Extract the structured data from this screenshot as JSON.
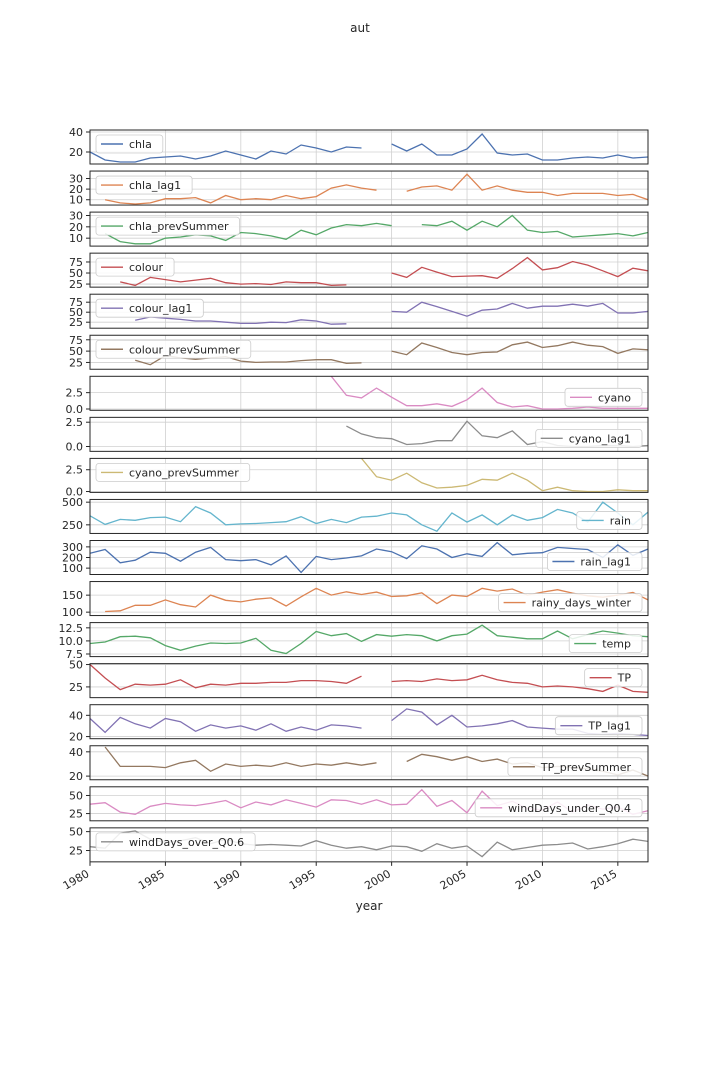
{
  "chart_data": {
    "type": "line",
    "title": "aut",
    "xlabel": "year",
    "xlim": [
      1980,
      2017
    ],
    "xticks": [
      1980,
      1985,
      1990,
      1995,
      2000,
      2005,
      2010,
      2015
    ],
    "xtick_labels": [
      "1980",
      "1985",
      "1990",
      "1995",
      "2000",
      "2005",
      "2010",
      "2015"
    ],
    "x_start": 1980,
    "grid": true,
    "subplots": [
      {
        "name": "chla",
        "color": "#4c72b0",
        "legend_loc": "upper-left",
        "ylim": [
          8,
          42
        ],
        "yticks": [
          20,
          40
        ],
        "ytick_labels": [
          "20",
          "40"
        ],
        "values": [
          20,
          12,
          10,
          10,
          14,
          15,
          16,
          13,
          16,
          21,
          17,
          13,
          21,
          18,
          27,
          24,
          20,
          25,
          24,
          null,
          28,
          21,
          28,
          17,
          17,
          23,
          38,
          19,
          17,
          18,
          12,
          12,
          14,
          15,
          14,
          17,
          14,
          15
        ]
      },
      {
        "name": "chla_lag1",
        "color": "#dd8452",
        "legend_loc": "upper-left",
        "ylim": [
          5,
          37
        ],
        "yticks": [
          10,
          20,
          30
        ],
        "ytick_labels": [
          "10",
          "20",
          "30"
        ],
        "values": [
          null,
          10,
          7,
          6,
          7,
          11,
          11,
          12,
          7,
          14,
          10,
          11,
          10,
          14,
          11,
          13,
          21,
          24,
          21,
          19,
          null,
          18,
          22,
          23,
          19,
          34,
          19,
          23,
          19,
          17,
          17,
          14,
          16,
          16,
          16,
          14,
          15,
          10
        ]
      },
      {
        "name": "chla_prevSummer",
        "color": "#55a868",
        "legend_loc": "upper-left",
        "ylim": [
          3,
          33
        ],
        "yticks": [
          10,
          20,
          30
        ],
        "ytick_labels": [
          "10",
          "20",
          "30"
        ],
        "values": [
          null,
          14,
          7,
          5,
          5,
          10,
          11,
          13,
          12,
          8,
          15,
          14,
          12,
          9,
          17,
          13,
          19,
          22,
          21,
          23,
          21,
          null,
          22,
          21,
          25,
          17,
          25,
          20,
          30,
          17,
          15,
          16,
          11,
          12,
          13,
          14,
          12,
          15
        ]
      },
      {
        "name": "colour",
        "color": "#c44e52",
        "legend_loc": "upper-left",
        "ylim": [
          18,
          95
        ],
        "yticks": [
          25,
          50,
          75
        ],
        "ytick_labels": [
          "25",
          "50",
          "75"
        ],
        "values": [
          null,
          null,
          30,
          22,
          40,
          35,
          30,
          34,
          38,
          28,
          25,
          26,
          24,
          30,
          28,
          28,
          22,
          23,
          null,
          null,
          50,
          40,
          63,
          52,
          42,
          43,
          44,
          38,
          60,
          85,
          57,
          62,
          76,
          68,
          55,
          42,
          61,
          55
        ]
      },
      {
        "name": "colour_lag1",
        "color": "#8172b3",
        "legend_loc": "upper-left",
        "ylim": [
          10,
          95
        ],
        "yticks": [
          25,
          50,
          75
        ],
        "ytick_labels": [
          "25",
          "50",
          "75"
        ],
        "values": [
          null,
          null,
          null,
          30,
          38,
          35,
          32,
          28,
          28,
          25,
          22,
          22,
          25,
          24,
          31,
          28,
          20,
          21,
          null,
          null,
          52,
          50,
          75,
          64,
          52,
          40,
          55,
          58,
          72,
          60,
          65,
          65,
          70,
          65,
          72,
          48,
          48,
          52
        ]
      },
      {
        "name": "colour_prevSummer",
        "color": "#937860",
        "legend_loc": "upper-left",
        "ylim": [
          10,
          85
        ],
        "yticks": [
          25,
          50,
          75
        ],
        "ytick_labels": [
          "25",
          "50",
          "75"
        ],
        "values": [
          null,
          null,
          null,
          30,
          20,
          40,
          35,
          32,
          35,
          38,
          28,
          25,
          26,
          26,
          29,
          31,
          31,
          23,
          24,
          null,
          50,
          42,
          68,
          58,
          47,
          42,
          47,
          48,
          64,
          70,
          58,
          62,
          70,
          63,
          60,
          45,
          55,
          53
        ]
      },
      {
        "name": "cyano",
        "color": "#da8bc3",
        "legend_loc": "lower-right",
        "ylim": [
          -0.2,
          5.0
        ],
        "yticks": [
          0.0,
          2.5
        ],
        "ytick_labels": [
          "0.0",
          "2.5"
        ],
        "values": [
          null,
          null,
          null,
          null,
          null,
          null,
          null,
          null,
          null,
          null,
          null,
          null,
          null,
          null,
          null,
          null,
          5.0,
          2.1,
          1.7,
          3.2,
          1.8,
          0.5,
          0.5,
          0.8,
          0.4,
          1.4,
          3.2,
          1.0,
          0.3,
          0.5,
          0.0,
          0.0,
          0.1,
          0.3,
          0.1,
          0.1,
          0.1,
          0.1
        ]
      },
      {
        "name": "cyano_lag1",
        "color": "#8c8c8c",
        "legend_loc": "lower-right",
        "ylim": [
          -0.5,
          3.0
        ],
        "yticks": [
          0.0,
          2.5
        ],
        "ytick_labels": [
          "0.0",
          "2.5"
        ],
        "values": [
          null,
          null,
          null,
          null,
          null,
          null,
          null,
          null,
          null,
          null,
          null,
          null,
          null,
          null,
          null,
          null,
          null,
          2.1,
          1.3,
          0.9,
          0.8,
          0.2,
          0.3,
          0.6,
          0.6,
          2.6,
          1.1,
          0.9,
          1.6,
          0.2,
          0.5,
          0.1,
          0.0,
          0.0,
          0.1,
          0.1,
          0.0,
          0.1
        ]
      },
      {
        "name": "cyano_prevSummer",
        "color": "#ccb974",
        "legend_loc": "upper-left",
        "ylim": [
          -0.1,
          3.8
        ],
        "yticks": [
          0.0,
          2.5
        ],
        "ytick_labels": [
          "0.0",
          "2.5"
        ],
        "values": [
          null,
          null,
          null,
          null,
          null,
          null,
          null,
          null,
          null,
          null,
          null,
          null,
          null,
          null,
          null,
          null,
          null,
          null,
          3.8,
          1.7,
          1.3,
          2.1,
          1.0,
          0.4,
          0.5,
          0.7,
          1.4,
          1.3,
          2.1,
          1.3,
          0.1,
          0.5,
          0.1,
          0.0,
          0.0,
          0.2,
          0.1,
          0.1
        ]
      },
      {
        "name": "rain",
        "color": "#64b5cd",
        "legend_loc": "lower-right",
        "ylim": [
          155,
          530
        ],
        "yticks": [
          250,
          500
        ],
        "ytick_labels": [
          "250",
          "500"
        ],
        "values": [
          350,
          255,
          310,
          300,
          330,
          335,
          285,
          450,
          380,
          250,
          260,
          265,
          275,
          285,
          340,
          265,
          310,
          275,
          335,
          345,
          380,
          360,
          250,
          180,
          380,
          280,
          360,
          250,
          360,
          300,
          330,
          420,
          380,
          280,
          500,
          380,
          250,
          390
        ]
      },
      {
        "name": "rain_lag1",
        "color": "#4c72b0",
        "legend_loc": "lower-right",
        "ylim": [
          40,
          360
        ],
        "yticks": [
          100,
          200,
          300
        ],
        "ytick_labels": [
          "100",
          "200",
          "300"
        ],
        "values": [
          240,
          275,
          150,
          175,
          250,
          240,
          165,
          250,
          295,
          180,
          170,
          180,
          130,
          215,
          60,
          210,
          180,
          195,
          215,
          280,
          255,
          190,
          310,
          280,
          200,
          235,
          210,
          340,
          225,
          240,
          245,
          295,
          285,
          275,
          200,
          320,
          220,
          280
        ]
      },
      {
        "name": "rainy_days_winter",
        "color": "#dd8452",
        "legend_loc": "lower-right",
        "ylim": [
          90,
          190
        ],
        "yticks": [
          100,
          150
        ],
        "ytick_labels": [
          "100",
          "150"
        ],
        "values": [
          null,
          102,
          104,
          120,
          120,
          136,
          122,
          115,
          150,
          135,
          130,
          138,
          142,
          118,
          145,
          170,
          150,
          160,
          152,
          159,
          146,
          148,
          157,
          125,
          150,
          146,
          170,
          162,
          168,
          150,
          159,
          166,
          156,
          148,
          144,
          150,
          158,
          136
        ]
      },
      {
        "name": "temp",
        "color": "#55a868",
        "legend_loc": "lower-right",
        "ylim": [
          7.0,
          13.5
        ],
        "yticks": [
          7.5,
          10.0,
          12.5
        ],
        "ytick_labels": [
          "7.5",
          "10.0",
          "12.5"
        ],
        "values": [
          9.5,
          9.8,
          10.8,
          10.9,
          10.6,
          9.1,
          8.2,
          9.0,
          9.6,
          9.5,
          9.6,
          10.5,
          8.2,
          7.6,
          9.5,
          11.8,
          11.0,
          11.4,
          9.9,
          11.2,
          10.9,
          11.2,
          11.0,
          10.0,
          11.0,
          11.3,
          13.0,
          11.0,
          10.7,
          10.4,
          10.4,
          11.9,
          10.4,
          11.2,
          11.9,
          11.5,
          11.0,
          10.8
        ]
      },
      {
        "name": "TP",
        "color": "#c44e52",
        "legend_loc": "upper-right",
        "ylim": [
          13,
          51
        ],
        "yticks": [
          25,
          50
        ],
        "ytick_labels": [
          "25",
          "50"
        ],
        "values": [
          50,
          35,
          22,
          28,
          27,
          28,
          33,
          24,
          28,
          27,
          29,
          29,
          30,
          30,
          32,
          32,
          31,
          29,
          37,
          null,
          31,
          32,
          31,
          34,
          32,
          33,
          38,
          33,
          30,
          29,
          25,
          26,
          25,
          23,
          20,
          27,
          20,
          19
        ]
      },
      {
        "name": "TP_lag1",
        "color": "#8172b3",
        "legend_loc": "lower-right",
        "ylim": [
          18,
          50
        ],
        "yticks": [
          20,
          40
        ],
        "ytick_labels": [
          "20",
          "40"
        ],
        "values": [
          37,
          24,
          38,
          32,
          28,
          37,
          34,
          25,
          31,
          28,
          30,
          26,
          32,
          25,
          29,
          26,
          31,
          30,
          28,
          null,
          35,
          46,
          43,
          31,
          40,
          29,
          30,
          32,
          35,
          29,
          28,
          27,
          27,
          23,
          22,
          23,
          22,
          21
        ]
      },
      {
        "name": "TP_prevSummer",
        "color": "#937860",
        "legend_loc": "lower-right",
        "ylim": [
          17,
          45
        ],
        "yticks": [
          20,
          40
        ],
        "ytick_labels": [
          "20",
          "40"
        ],
        "values": [
          null,
          44,
          28,
          28,
          28,
          27,
          31,
          33,
          24,
          30,
          28,
          29,
          28,
          31,
          28,
          30,
          29,
          31,
          29,
          31,
          null,
          32,
          38,
          36,
          33,
          36,
          32,
          34,
          30,
          31,
          27,
          28,
          27,
          26,
          24,
          21,
          25,
          20
        ]
      },
      {
        "name": "windDays_under_Q0.4",
        "color": "#da8bc3",
        "legend_loc": "lower-right",
        "ylim": [
          15,
          62
        ],
        "yticks": [
          25,
          50
        ],
        "ytick_labels": [
          "25",
          "50"
        ],
        "values": [
          38,
          40,
          27,
          24,
          35,
          39,
          37,
          36,
          39,
          43,
          33,
          41,
          37,
          44,
          39,
          34,
          44,
          43,
          38,
          44,
          37,
          38,
          58,
          35,
          43,
          26,
          56,
          36,
          42,
          32,
          30,
          41,
          27,
          37,
          31,
          34,
          24,
          29
        ]
      },
      {
        "name": "windDays_over_Q0.6",
        "color": "#8c8c8c",
        "legend_loc": "upper-left",
        "ylim": [
          10,
          55
        ],
        "yticks": [
          25,
          50
        ],
        "ytick_labels": [
          "25",
          "50"
        ],
        "values": [
          30,
          28,
          48,
          51,
          40,
          36,
          38,
          42,
          34,
          40,
          34,
          32,
          33,
          32,
          31,
          38,
          32,
          28,
          30,
          26,
          31,
          30,
          24,
          34,
          28,
          31,
          17,
          36,
          26,
          29,
          32,
          33,
          35,
          27,
          30,
          34,
          40,
          37
        ]
      }
    ]
  }
}
